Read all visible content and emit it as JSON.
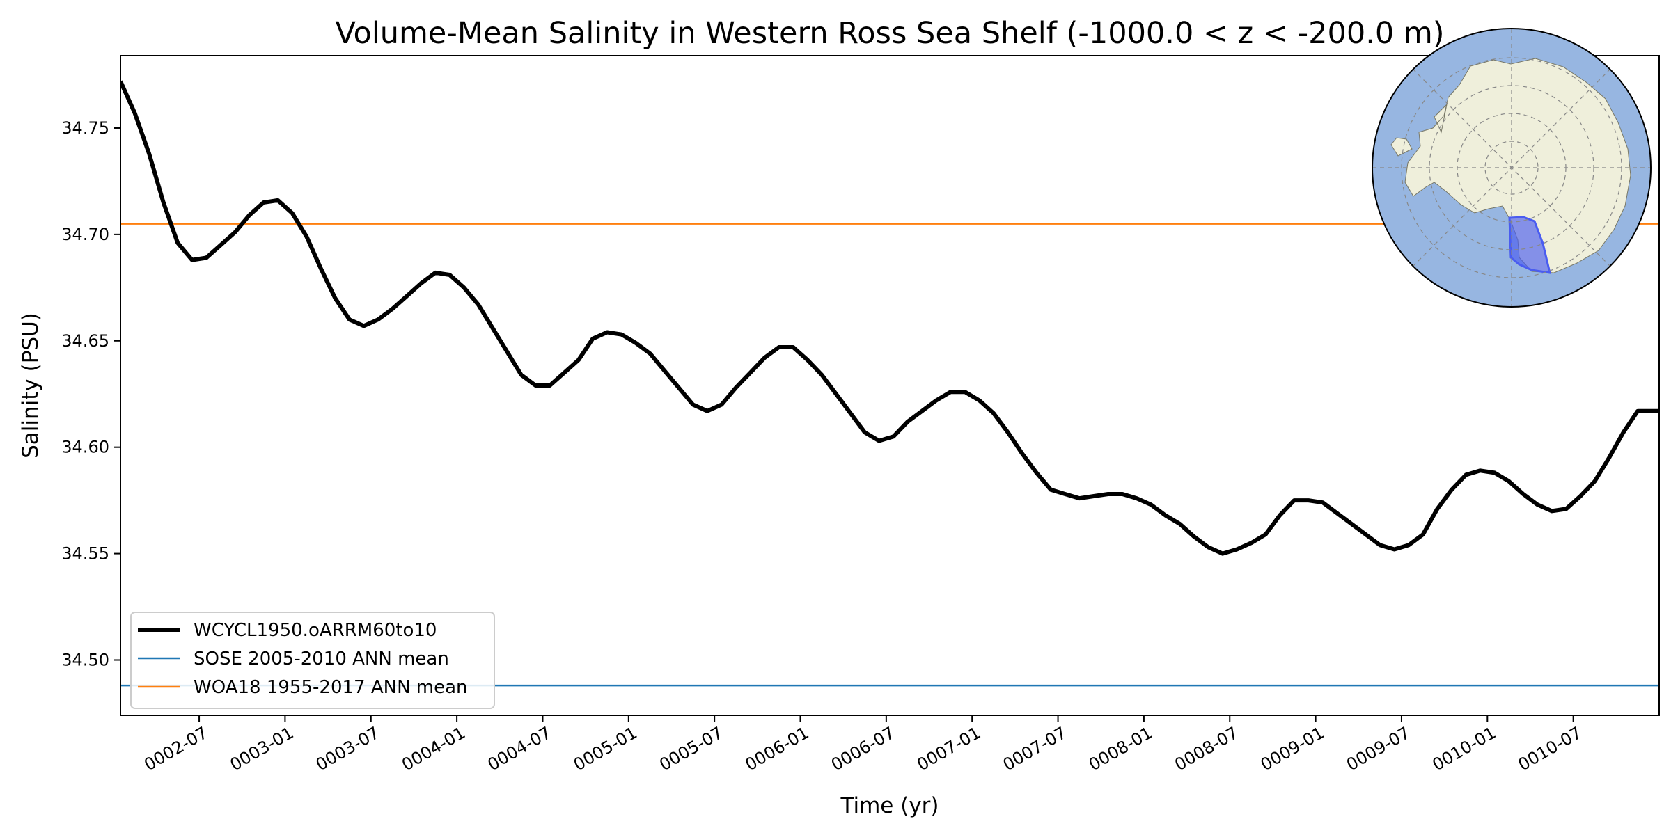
{
  "chart_data": {
    "type": "line",
    "title": "Volume-Mean Salinity in Western Ross Sea Shelf (-1000.0 < z < -200.0 m)",
    "xlabel": "Time (yr)",
    "ylabel": "Salinity (PSU)",
    "x_units": "months since 0002-01",
    "xlim": [
      0,
      107.5
    ],
    "ylim": [
      34.474,
      34.784
    ],
    "yticks": [
      34.5,
      34.55,
      34.6,
      34.65,
      34.7,
      34.75
    ],
    "ytick_labels": [
      "34.50",
      "34.55",
      "34.60",
      "34.65",
      "34.70",
      "34.75"
    ],
    "xticks": [
      5.5,
      11.5,
      17.5,
      23.5,
      29.5,
      35.5,
      41.5,
      47.5,
      53.5,
      59.5,
      65.5,
      71.5,
      77.5,
      83.5,
      89.5,
      95.5,
      101.5
    ],
    "xtick_labels": [
      "0002-07",
      "0003-01",
      "0003-07",
      "0004-01",
      "0004-07",
      "0005-01",
      "0005-07",
      "0006-01",
      "0006-07",
      "0007-01",
      "0007-07",
      "0008-01",
      "0008-07",
      "0009-01",
      "0009-07",
      "0010-01",
      "0010-07"
    ],
    "grid": false,
    "legend_position": "lower-left",
    "series": [
      {
        "name": "WCYCL1950.oARRM60to10",
        "color": "#000000",
        "x": [
          0,
          1,
          2,
          3,
          4,
          5,
          6,
          7,
          8,
          9,
          10,
          11,
          12,
          13,
          14,
          15,
          16,
          17,
          18,
          19,
          20,
          21,
          22,
          23,
          24,
          25,
          26,
          27,
          28,
          29,
          30,
          31,
          32,
          33,
          34,
          35,
          36,
          37,
          38,
          39,
          40,
          41,
          42,
          43,
          44,
          45,
          46,
          47,
          48,
          49,
          50,
          51,
          52,
          53,
          54,
          55,
          56,
          57,
          58,
          59,
          60,
          61,
          62,
          63,
          64,
          65,
          66,
          67,
          68,
          69,
          70,
          71,
          72,
          73,
          74,
          75,
          76,
          77,
          78,
          79,
          80,
          81,
          82,
          83,
          84,
          85,
          86,
          87,
          88,
          89,
          90,
          91,
          92,
          93,
          94,
          95,
          96,
          97,
          98,
          99,
          100,
          101,
          102,
          103,
          104,
          105,
          106,
          107,
          107.5
        ],
        "values": [
          34.772,
          34.757,
          34.738,
          34.715,
          34.696,
          34.688,
          34.689,
          34.695,
          34.701,
          34.709,
          34.715,
          34.716,
          34.71,
          34.699,
          34.684,
          34.67,
          34.66,
          34.657,
          34.66,
          34.665,
          34.671,
          34.677,
          34.682,
          34.681,
          34.675,
          34.667,
          34.656,
          34.645,
          34.634,
          34.629,
          34.629,
          34.635,
          34.641,
          34.651,
          34.654,
          34.653,
          34.649,
          34.644,
          34.636,
          34.628,
          34.62,
          34.617,
          34.62,
          34.628,
          34.635,
          34.642,
          34.647,
          34.647,
          34.641,
          34.634,
          34.625,
          34.616,
          34.607,
          34.603,
          34.605,
          34.612,
          34.617,
          34.622,
          34.626,
          34.626,
          34.622,
          34.616,
          34.607,
          34.597,
          34.588,
          34.58,
          34.578,
          34.576,
          34.577,
          34.578,
          34.578,
          34.576,
          34.573,
          34.568,
          34.564,
          34.558,
          34.553,
          34.55,
          34.552,
          34.555,
          34.559,
          34.568,
          34.575,
          34.575,
          34.574,
          34.569,
          34.564,
          34.559,
          34.554,
          34.552,
          34.554,
          34.559,
          34.571,
          34.58,
          34.587,
          34.589,
          34.588,
          34.584,
          34.578,
          34.573,
          34.57,
          34.571,
          34.577,
          34.584,
          34.595,
          34.607,
          34.617,
          34.617,
          34.617
        ]
      },
      {
        "name": "SOSE 2005-2010 ANN mean",
        "color": "#1f77b4",
        "value": 34.488
      },
      {
        "name": "WOA18 1955-2017 ANN mean",
        "color": "#ff7f0e",
        "value": 34.705
      }
    ],
    "inset_map": {
      "description_name": "antarctica-polar-map",
      "ocean_color": "#97b6e1",
      "land_color": "#efefdb",
      "region_color": "#4a5cf0"
    }
  }
}
